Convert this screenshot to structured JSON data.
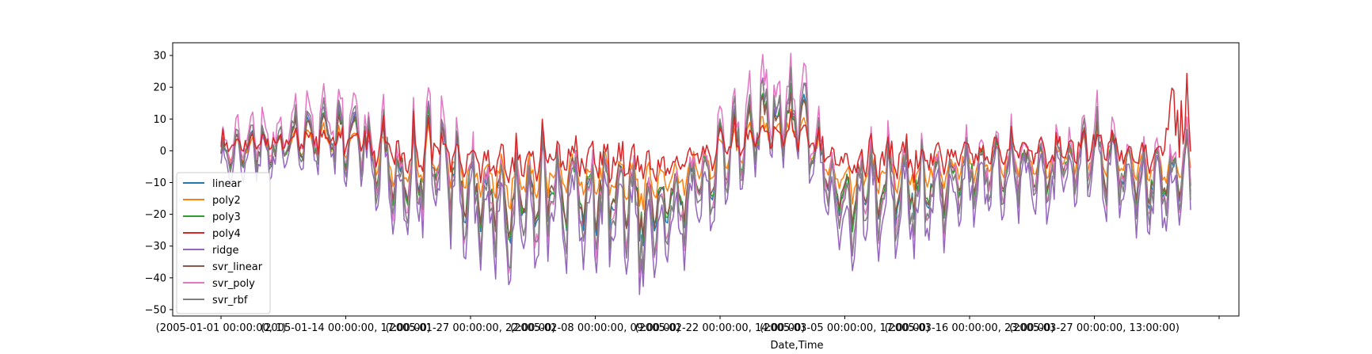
{
  "chart_data": {
    "type": "line",
    "title": "",
    "xlabel": "Date,Time",
    "ylabel": "",
    "ylim": [
      -52,
      34
    ],
    "yticks": [
      30,
      20,
      10,
      0,
      -10,
      -20,
      -30,
      -40,
      -50
    ],
    "x_tick_labels": [
      "(2005-01-01 00:00:00, 1)",
      "(2005-01-14 00:00:00, 17:00:00)",
      "(2005-01-27 00:00:00, 22:00:00)",
      "(2005-02-08 00:00:00, 09:00:00)",
      "(2005-02-22 00:00:00, 14:00:00)",
      "(2005-03-05 00:00:00, 17:00:00)",
      "(2005-03-16 00:00:00, 23:00:00)",
      "(2005-03-27 00:00:00, 13:00:00)"
    ],
    "grid": false,
    "legend_position": "lower-left",
    "series": [
      {
        "name": "linear",
        "color": "#1f77b4"
      },
      {
        "name": "poly2",
        "color": "#ff7f0e"
      },
      {
        "name": "poly3",
        "color": "#2ca02c"
      },
      {
        "name": "poly4",
        "color": "#d62728"
      },
      {
        "name": "ridge",
        "color": "#9467bd"
      },
      {
        "name": "svr_linear",
        "color": "#8c564b"
      },
      {
        "name": "svr_poly",
        "color": "#e377c2"
      },
      {
        "name": "svr_rbf",
        "color": "#7f7f7f"
      }
    ],
    "envelope_points": [
      {
        "x": 0.0,
        "base": -3,
        "amp": 6
      },
      {
        "x": 0.03,
        "base": 2,
        "amp": 10
      },
      {
        "x": 0.08,
        "base": 4,
        "amp": 12
      },
      {
        "x": 0.14,
        "base": 6,
        "amp": 14
      },
      {
        "x": 0.18,
        "base": -12,
        "amp": 18
      },
      {
        "x": 0.22,
        "base": -4,
        "amp": 20
      },
      {
        "x": 0.27,
        "base": -18,
        "amp": 16
      },
      {
        "x": 0.3,
        "base": -22,
        "amp": 18
      },
      {
        "x": 0.34,
        "base": -12,
        "amp": 18
      },
      {
        "x": 0.4,
        "base": -18,
        "amp": 20
      },
      {
        "x": 0.45,
        "base": -22,
        "amp": 18
      },
      {
        "x": 0.5,
        "base": -10,
        "amp": 14
      },
      {
        "x": 0.55,
        "base": 10,
        "amp": 16
      },
      {
        "x": 0.6,
        "base": 12,
        "amp": 14
      },
      {
        "x": 0.64,
        "base": -20,
        "amp": 18
      },
      {
        "x": 0.68,
        "base": -12,
        "amp": 22
      },
      {
        "x": 0.72,
        "base": -14,
        "amp": 18
      },
      {
        "x": 0.77,
        "base": -8,
        "amp": 14
      },
      {
        "x": 0.82,
        "base": -6,
        "amp": 12
      },
      {
        "x": 0.86,
        "base": -6,
        "amp": 14
      },
      {
        "x": 0.9,
        "base": 0,
        "amp": 16
      },
      {
        "x": 0.95,
        "base": -12,
        "amp": 14
      },
      {
        "x": 1.0,
        "base": -8,
        "amp": 16
      }
    ]
  }
}
